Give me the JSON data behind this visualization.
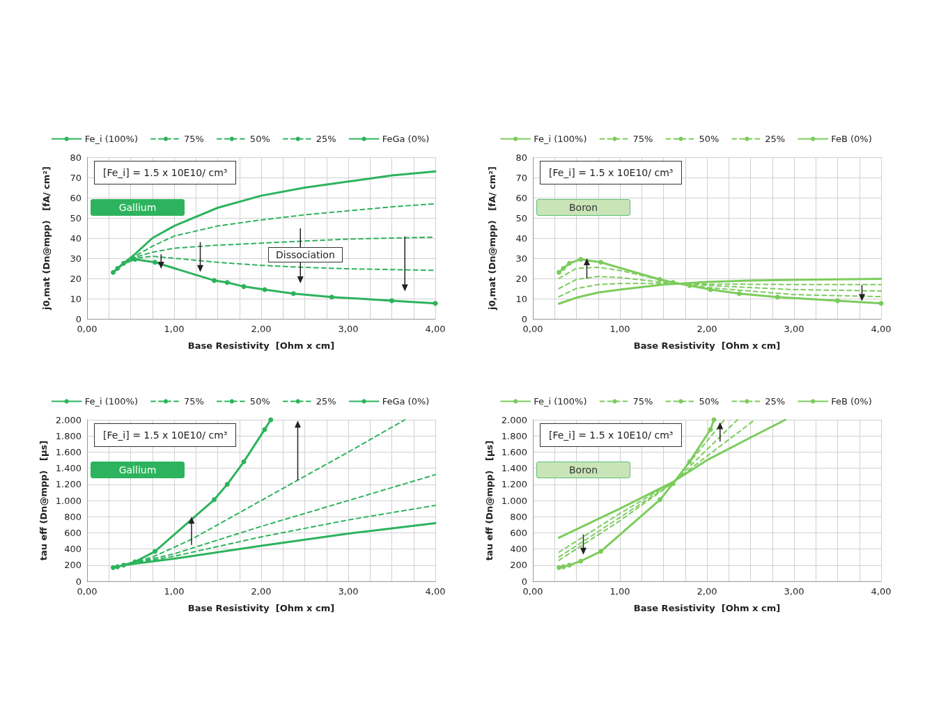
{
  "chart_data": [
    {
      "type": "line",
      "xlabel": "Base Resistivity  [Ohm x cm]",
      "ylabel": "j0,mat (Dn@mpp)   [fA/ cm²]",
      "annotations": [
        "[Fe_i] = 1.5 x 10E10/ cm³",
        "Gallium",
        "Dissociation"
      ],
      "xlim": [
        0,
        4
      ],
      "xticks": [
        {
          "value": 0,
          "label": "0,00"
        },
        {
          "value": 0.25,
          "label": null
        },
        {
          "value": 0.5,
          "label": null
        },
        {
          "value": 0.75,
          "label": null
        },
        {
          "value": 1,
          "label": "1,00"
        },
        {
          "value": 1.25,
          "label": null
        },
        {
          "value": 1.5,
          "label": null
        },
        {
          "value": 1.75,
          "label": null
        },
        {
          "value": 2,
          "label": "2,00"
        },
        {
          "value": 2.25,
          "label": null
        },
        {
          "value": 2.5,
          "label": null
        },
        {
          "value": 2.75,
          "label": null
        },
        {
          "value": 3,
          "label": "3,00"
        },
        {
          "value": 3.25,
          "label": null
        },
        {
          "value": 3.5,
          "label": null
        },
        {
          "value": 3.75,
          "label": null
        },
        {
          "value": 4,
          "label": "4,00"
        }
      ],
      "ylim": [
        0,
        80
      ],
      "yticks": [
        0,
        10,
        20,
        30,
        40,
        50,
        60,
        70,
        80
      ],
      "grid": true,
      "legend": "top",
      "series": [
        {
          "name": "Fe_i (100%)",
          "color": "#2db35d",
          "marker": "circle",
          "line_style": "solid",
          "x": [
            0.3,
            0.35,
            0.42,
            0.55,
            0.78,
            1.46,
            1.61,
            1.8,
            2.04,
            2.37,
            2.81,
            3.5,
            4.0
          ],
          "values": [
            23,
            25,
            27.5,
            29.5,
            28,
            19,
            18,
            16,
            14.5,
            12.5,
            10.8,
            9,
            7.7
          ]
        },
        {
          "name": "75%",
          "color": "#2db35d",
          "marker": "none",
          "line_style": "dashed",
          "x": [
            0.42,
            0.55,
            0.75,
            1.0,
            1.5,
            2.0,
            2.5,
            3.0,
            3.5,
            4.0
          ],
          "values": [
            28,
            31,
            36,
            41,
            46,
            49,
            51.5,
            53.5,
            55.5,
            57
          ]
        },
        {
          "name": "50%",
          "color": "#2db35d",
          "marker": "none",
          "line_style": "dashed",
          "x": [
            0.42,
            0.55,
            0.75,
            1.0,
            1.5,
            2.0,
            2.5,
            3.0,
            4.0
          ],
          "values": [
            28,
            30.5,
            33,
            35,
            36.5,
            37.5,
            38.5,
            39.5,
            40.5
          ]
        },
        {
          "name": "25%",
          "color": "#2db35d",
          "marker": "none",
          "line_style": "dashed",
          "x": [
            0.42,
            0.55,
            0.75,
            1.0,
            1.5,
            2.0,
            2.5,
            3.0,
            4.0
          ],
          "values": [
            28,
            30,
            31,
            30,
            28,
            26.5,
            25.5,
            24.8,
            24
          ]
        },
        {
          "name": "FeGa (0%)",
          "color": "#2db35d",
          "marker": "none",
          "line_style": "solid",
          "x": [
            0.3,
            0.42,
            0.55,
            0.75,
            1.0,
            1.5,
            2.0,
            2.5,
            3.0,
            3.5,
            4.0
          ],
          "values": [
            23,
            27.5,
            32,
            40,
            46,
            55,
            61,
            65,
            68,
            71,
            73
          ]
        }
      ]
    },
    {
      "type": "line",
      "xlabel": "Base Resistivity  [Ohm x cm]",
      "ylabel": "j0,mat (Dn@mpp)   [fA/ cm²]",
      "annotations": [
        "[Fe_i] = 1.5 x 10E10/ cm³",
        "Boron"
      ],
      "xlim": [
        0,
        4
      ],
      "xticks": [
        {
          "value": 0,
          "label": "0,00"
        },
        {
          "value": 0.25,
          "label": null
        },
        {
          "value": 0.5,
          "label": null
        },
        {
          "value": 0.75,
          "label": null
        },
        {
          "value": 1,
          "label": "1,00"
        },
        {
          "value": 1.25,
          "label": null
        },
        {
          "value": 1.5,
          "label": null
        },
        {
          "value": 1.75,
          "label": null
        },
        {
          "value": 2,
          "label": "2,00"
        },
        {
          "value": 2.25,
          "label": null
        },
        {
          "value": 2.5,
          "label": null
        },
        {
          "value": 2.75,
          "label": null
        },
        {
          "value": 3,
          "label": "3,00"
        },
        {
          "value": 3.25,
          "label": null
        },
        {
          "value": 3.5,
          "label": null
        },
        {
          "value": 3.75,
          "label": null
        },
        {
          "value": 4,
          "label": "4,00"
        }
      ],
      "ylim": [
        0,
        80
      ],
      "yticks": [
        0,
        10,
        20,
        30,
        40,
        50,
        60,
        70,
        80
      ],
      "grid": true,
      "legend": "top",
      "series": [
        {
          "name": "Fe_i (100%)",
          "color": "#7ccc5c",
          "marker": "circle",
          "line_style": "solid",
          "x": [
            0.3,
            0.35,
            0.42,
            0.55,
            0.78,
            1.46,
            1.61,
            1.8,
            2.04,
            2.37,
            2.81,
            3.5,
            4.0
          ],
          "values": [
            23,
            25,
            27.5,
            29.5,
            28,
            19.5,
            18,
            16.5,
            14.5,
            12.5,
            10.8,
            9,
            7.7
          ]
        },
        {
          "name": "75%",
          "color": "#7ccc5c",
          "marker": "none",
          "line_style": "dashed",
          "x": [
            0.3,
            0.5,
            0.75,
            1.0,
            1.5,
            1.61,
            2.0,
            3.0,
            4.0
          ],
          "values": [
            20,
            25,
            25.5,
            24,
            19,
            18,
            15.5,
            12,
            11
          ]
        },
        {
          "name": "50%",
          "color": "#7ccc5c",
          "marker": "none",
          "line_style": "dashed",
          "x": [
            0.3,
            0.5,
            0.75,
            1.0,
            1.5,
            2.0,
            3.0,
            4.0
          ],
          "values": [
            15,
            19.5,
            21,
            20.5,
            18,
            16.5,
            14.5,
            13.8
          ]
        },
        {
          "name": "25%",
          "color": "#7ccc5c",
          "marker": "none",
          "line_style": "dashed",
          "x": [
            0.3,
            0.5,
            0.75,
            1.0,
            1.5,
            2.0,
            3.0,
            4.0
          ],
          "values": [
            11,
            15,
            17,
            17.5,
            17.5,
            17.2,
            17,
            17
          ]
        },
        {
          "name": "FeB (0%)",
          "color": "#7ccc5c",
          "marker": "none",
          "line_style": "solid",
          "x": [
            0.3,
            0.5,
            0.75,
            1.0,
            1.5,
            2.0,
            2.5,
            3.0,
            4.0
          ],
          "values": [
            7.5,
            10.5,
            13,
            14.5,
            17,
            18.3,
            19,
            19.3,
            19.8
          ]
        }
      ]
    },
    {
      "type": "line",
      "xlabel": "Base Resistivity  [Ohm x cm]",
      "ylabel": "tau eff (Dn@mpp)   [µs]",
      "annotations": [
        "[Fe_i] = 1.5 x 10E10/ cm³",
        "Gallium"
      ],
      "xlim": [
        0,
        4
      ],
      "xticks": [
        {
          "value": 0,
          "label": "0,00"
        },
        {
          "value": 0.25,
          "label": null
        },
        {
          "value": 0.5,
          "label": null
        },
        {
          "value": 0.75,
          "label": null
        },
        {
          "value": 1,
          "label": "1,00"
        },
        {
          "value": 1.25,
          "label": null
        },
        {
          "value": 1.5,
          "label": null
        },
        {
          "value": 1.75,
          "label": null
        },
        {
          "value": 2,
          "label": "2,00"
        },
        {
          "value": 2.25,
          "label": null
        },
        {
          "value": 2.5,
          "label": null
        },
        {
          "value": 2.75,
          "label": null
        },
        {
          "value": 3,
          "label": "3,00"
        },
        {
          "value": 3.25,
          "label": null
        },
        {
          "value": 3.5,
          "label": null
        },
        {
          "value": 3.75,
          "label": null
        },
        {
          "value": 4,
          "label": "4,00"
        }
      ],
      "ylim": [
        0,
        2000
      ],
      "yticks": [
        0,
        200,
        400,
        600,
        800,
        {
          "value": 1000,
          "label": "1.000"
        },
        {
          "value": 1200,
          "label": "1.200"
        },
        {
          "value": 1400,
          "label": "1.400"
        },
        {
          "value": 1600,
          "label": "1.600"
        },
        {
          "value": 1800,
          "label": "1.800"
        },
        {
          "value": 2000,
          "label": "2.000"
        }
      ],
      "grid": true,
      "legend": "top",
      "series": [
        {
          "name": "Fe_i (100%)",
          "color": "#2db35d",
          "marker": "circle",
          "line_style": "solid",
          "x": [
            0.3,
            0.35,
            0.42,
            0.55,
            0.78,
            1.46,
            1.61,
            1.8,
            2.04,
            2.11
          ],
          "values": [
            170,
            180,
            200,
            240,
            370,
            1010,
            1200,
            1480,
            1880,
            2000
          ]
        },
        {
          "name": "75%",
          "color": "#2db35d",
          "marker": "none",
          "line_style": "dashed",
          "x": [
            0.42,
            0.75,
            1.0,
            1.2,
            2.0,
            3.0,
            3.65
          ],
          "values": [
            200,
            300,
            420,
            520,
            1000,
            1600,
            2000
          ]
        },
        {
          "name": "50%",
          "color": "#2db35d",
          "marker": "none",
          "line_style": "dashed",
          "x": [
            0.42,
            1.0,
            2.0,
            3.0,
            4.0
          ],
          "values": [
            200,
            340,
            680,
            1000,
            1320
          ]
        },
        {
          "name": "25%",
          "color": "#2db35d",
          "marker": "none",
          "line_style": "dashed",
          "x": [
            0.42,
            1.0,
            2.0,
            3.0,
            4.0
          ],
          "values": [
            200,
            310,
            550,
            760,
            940
          ]
        },
        {
          "name": "FeGa (0%)",
          "color": "#2db35d",
          "marker": "none",
          "line_style": "solid",
          "x": [
            0.42,
            1.0,
            2.0,
            3.0,
            4.0
          ],
          "values": [
            200,
            280,
            440,
            590,
            720
          ]
        }
      ]
    },
    {
      "type": "line",
      "xlabel": "Base Resistivity  [Ohm x cm]",
      "ylabel": "tau eff (Dn@mpp)   [µs]",
      "annotations": [
        "[Fe_i] = 1.5 x 10E10/ cm³",
        "Boron"
      ],
      "xlim": [
        0,
        4
      ],
      "xticks": [
        {
          "value": 0,
          "label": "0,00"
        },
        {
          "value": 0.25,
          "label": null
        },
        {
          "value": 0.5,
          "label": null
        },
        {
          "value": 0.75,
          "label": null
        },
        {
          "value": 1,
          "label": "1,00"
        },
        {
          "value": 1.25,
          "label": null
        },
        {
          "value": 1.5,
          "label": null
        },
        {
          "value": 1.75,
          "label": null
        },
        {
          "value": 2,
          "label": "2,00"
        },
        {
          "value": 2.25,
          "label": null
        },
        {
          "value": 2.5,
          "label": null
        },
        {
          "value": 2.75,
          "label": null
        },
        {
          "value": 3,
          "label": "3,00"
        },
        {
          "value": 3.25,
          "label": null
        },
        {
          "value": 3.5,
          "label": null
        },
        {
          "value": 3.75,
          "label": null
        },
        {
          "value": 4,
          "label": "4,00"
        }
      ],
      "ylim": [
        0,
        2000
      ],
      "yticks": [
        0,
        200,
        400,
        600,
        800,
        {
          "value": 1000,
          "label": "1.000"
        },
        {
          "value": 1200,
          "label": "1.200"
        },
        {
          "value": 1400,
          "label": "1.400"
        },
        {
          "value": 1600,
          "label": "1.600"
        },
        {
          "value": 1800,
          "label": "1.800"
        },
        {
          "value": 2000,
          "label": "2.000"
        }
      ],
      "grid": true,
      "legend": "top",
      "series": [
        {
          "name": "Fe_i (100%)",
          "color": "#7ccc5c",
          "marker": "circle",
          "line_style": "solid",
          "x": [
            0.3,
            0.35,
            0.42,
            0.55,
            0.78,
            1.46,
            1.61,
            1.8,
            2.04,
            2.08
          ],
          "values": [
            170,
            180,
            200,
            250,
            370,
            1010,
            1210,
            1480,
            1880,
            2000
          ]
        },
        {
          "name": "75%",
          "color": "#7ccc5c",
          "marker": "none",
          "line_style": "dashed",
          "x": [
            0.3,
            1.0,
            1.61,
            2.2
          ],
          "values": [
            260,
            750,
            1220,
            2000
          ]
        },
        {
          "name": "50%",
          "color": "#7ccc5c",
          "marker": "none",
          "line_style": "dashed",
          "x": [
            0.3,
            1.0,
            1.61,
            2.35
          ],
          "values": [
            300,
            790,
            1220,
            2000
          ]
        },
        {
          "name": "25%",
          "color": "#7ccc5c",
          "marker": "none",
          "line_style": "dashed",
          "x": [
            0.3,
            1.0,
            1.61,
            2.55
          ],
          "values": [
            360,
            840,
            1230,
            2000
          ]
        },
        {
          "name": "FeB (0%)",
          "color": "#7ccc5c",
          "marker": "none",
          "line_style": "solid",
          "x": [
            0.3,
            1.0,
            1.61,
            2.0,
            2.5,
            2.9
          ],
          "values": [
            540,
            900,
            1230,
            1500,
            1780,
            2000
          ]
        }
      ]
    }
  ]
}
